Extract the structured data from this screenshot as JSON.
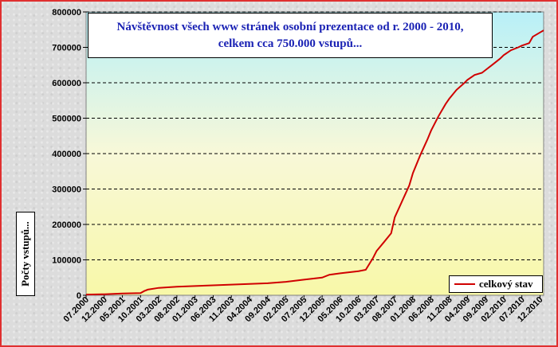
{
  "chart_data": {
    "type": "line",
    "title_line1": "Návštěvnost všech www stránek osobní prezentace od r. 2000 - 2010,",
    "title_line2": "celkem cca 750.000 vstupů...",
    "ylabel": "Počty vstupů...",
    "xlabel": "",
    "ylim": [
      0,
      800000
    ],
    "y_ticks": [
      "0",
      "100000",
      "200000",
      "300000",
      "400000",
      "500000",
      "600000",
      "700000",
      "800000"
    ],
    "x_tick_labels": [
      "07.2000",
      "12.2000",
      "05.2001",
      "10.2001",
      "03.2002",
      "08.2002",
      "01.2003",
      "06.2003",
      "11.2003",
      "04.2004",
      "09.2004",
      "02.2005",
      "07.2005",
      "12.2005",
      "05.2006",
      "10.2006",
      "03.2007",
      "08.2007",
      "01.2008",
      "06.2008",
      "11.2008",
      "04.2009",
      "09.2009",
      "02.2010",
      "07.2010",
      "12.2010"
    ],
    "grid": true,
    "legend_position": "bottom-right",
    "series": [
      {
        "name": "celkový stav",
        "color": "#d00000",
        "x": [
          "07.2000",
          "12.2000",
          "05.2001",
          "10.2001",
          "11.2001",
          "12.2001",
          "03.2002",
          "08.2002",
          "01.2003",
          "06.2003",
          "11.2003",
          "04.2004",
          "09.2004",
          "02.2005",
          "07.2005",
          "12.2005",
          "02.2006",
          "05.2006",
          "10.2006",
          "12.2006",
          "02.2007",
          "03.2007",
          "05.2007",
          "07.2007",
          "08.2007",
          "10.2007",
          "12.2007",
          "01.2008",
          "03.2008",
          "05.2008",
          "06.2008",
          "08.2008",
          "10.2008",
          "11.2008",
          "01.2009",
          "03.2009",
          "04.2009",
          "06.2009",
          "08.2009",
          "09.2009",
          "11.2009",
          "01.2010",
          "02.2010",
          "04.2010",
          "06.2010",
          "07.2010",
          "09.2010",
          "10.2010",
          "12.2010",
          "01.2011"
        ],
        "values": [
          2000,
          3000,
          5000,
          6000,
          12000,
          16000,
          21000,
          24000,
          26000,
          28000,
          30000,
          32000,
          34000,
          38000,
          44000,
          50000,
          58000,
          62000,
          68000,
          72000,
          105000,
          125000,
          150000,
          175000,
          220000,
          265000,
          310000,
          345000,
          395000,
          440000,
          465000,
          505000,
          540000,
          555000,
          580000,
          598000,
          608000,
          622000,
          628000,
          636000,
          652000,
          668000,
          678000,
          692000,
          700000,
          705000,
          712000,
          730000,
          742000,
          748000
        ]
      }
    ]
  }
}
